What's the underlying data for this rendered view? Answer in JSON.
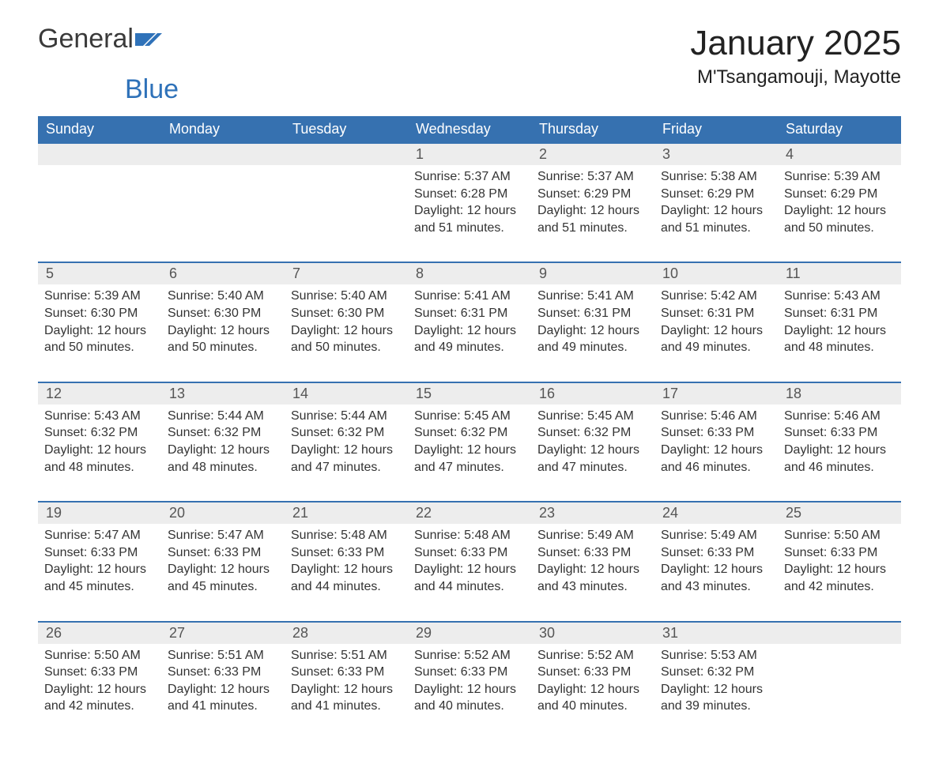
{
  "brand": {
    "word1": "General",
    "word2": "Blue"
  },
  "title": "January 2025",
  "location": "M'Tsangamouji, Mayotte",
  "colors": {
    "header_bg": "#3671b0",
    "header_text": "#ffffff",
    "daynum_bg": "#ededed",
    "row_border": "#3671b0",
    "body_text": "#333333",
    "logo_blue": "#2f72b9",
    "background": "#ffffff"
  },
  "typography": {
    "title_fontsize": 44,
    "location_fontsize": 24,
    "header_fontsize": 18,
    "daynum_fontsize": 18,
    "details_fontsize": 16
  },
  "calendar": {
    "type": "table",
    "columns": [
      "Sunday",
      "Monday",
      "Tuesday",
      "Wednesday",
      "Thursday",
      "Friday",
      "Saturday"
    ],
    "weeks": [
      [
        null,
        null,
        null,
        {
          "day": "1",
          "sunrise": "Sunrise: 5:37 AM",
          "sunset": "Sunset: 6:28 PM",
          "daylight": "Daylight: 12 hours and 51 minutes."
        },
        {
          "day": "2",
          "sunrise": "Sunrise: 5:37 AM",
          "sunset": "Sunset: 6:29 PM",
          "daylight": "Daylight: 12 hours and 51 minutes."
        },
        {
          "day": "3",
          "sunrise": "Sunrise: 5:38 AM",
          "sunset": "Sunset: 6:29 PM",
          "daylight": "Daylight: 12 hours and 51 minutes."
        },
        {
          "day": "4",
          "sunrise": "Sunrise: 5:39 AM",
          "sunset": "Sunset: 6:29 PM",
          "daylight": "Daylight: 12 hours and 50 minutes."
        }
      ],
      [
        {
          "day": "5",
          "sunrise": "Sunrise: 5:39 AM",
          "sunset": "Sunset: 6:30 PM",
          "daylight": "Daylight: 12 hours and 50 minutes."
        },
        {
          "day": "6",
          "sunrise": "Sunrise: 5:40 AM",
          "sunset": "Sunset: 6:30 PM",
          "daylight": "Daylight: 12 hours and 50 minutes."
        },
        {
          "day": "7",
          "sunrise": "Sunrise: 5:40 AM",
          "sunset": "Sunset: 6:30 PM",
          "daylight": "Daylight: 12 hours and 50 minutes."
        },
        {
          "day": "8",
          "sunrise": "Sunrise: 5:41 AM",
          "sunset": "Sunset: 6:31 PM",
          "daylight": "Daylight: 12 hours and 49 minutes."
        },
        {
          "day": "9",
          "sunrise": "Sunrise: 5:41 AM",
          "sunset": "Sunset: 6:31 PM",
          "daylight": "Daylight: 12 hours and 49 minutes."
        },
        {
          "day": "10",
          "sunrise": "Sunrise: 5:42 AM",
          "sunset": "Sunset: 6:31 PM",
          "daylight": "Daylight: 12 hours and 49 minutes."
        },
        {
          "day": "11",
          "sunrise": "Sunrise: 5:43 AM",
          "sunset": "Sunset: 6:31 PM",
          "daylight": "Daylight: 12 hours and 48 minutes."
        }
      ],
      [
        {
          "day": "12",
          "sunrise": "Sunrise: 5:43 AM",
          "sunset": "Sunset: 6:32 PM",
          "daylight": "Daylight: 12 hours and 48 minutes."
        },
        {
          "day": "13",
          "sunrise": "Sunrise: 5:44 AM",
          "sunset": "Sunset: 6:32 PM",
          "daylight": "Daylight: 12 hours and 48 minutes."
        },
        {
          "day": "14",
          "sunrise": "Sunrise: 5:44 AM",
          "sunset": "Sunset: 6:32 PM",
          "daylight": "Daylight: 12 hours and 47 minutes."
        },
        {
          "day": "15",
          "sunrise": "Sunrise: 5:45 AM",
          "sunset": "Sunset: 6:32 PM",
          "daylight": "Daylight: 12 hours and 47 minutes."
        },
        {
          "day": "16",
          "sunrise": "Sunrise: 5:45 AM",
          "sunset": "Sunset: 6:32 PM",
          "daylight": "Daylight: 12 hours and 47 minutes."
        },
        {
          "day": "17",
          "sunrise": "Sunrise: 5:46 AM",
          "sunset": "Sunset: 6:33 PM",
          "daylight": "Daylight: 12 hours and 46 minutes."
        },
        {
          "day": "18",
          "sunrise": "Sunrise: 5:46 AM",
          "sunset": "Sunset: 6:33 PM",
          "daylight": "Daylight: 12 hours and 46 minutes."
        }
      ],
      [
        {
          "day": "19",
          "sunrise": "Sunrise: 5:47 AM",
          "sunset": "Sunset: 6:33 PM",
          "daylight": "Daylight: 12 hours and 45 minutes."
        },
        {
          "day": "20",
          "sunrise": "Sunrise: 5:47 AM",
          "sunset": "Sunset: 6:33 PM",
          "daylight": "Daylight: 12 hours and 45 minutes."
        },
        {
          "day": "21",
          "sunrise": "Sunrise: 5:48 AM",
          "sunset": "Sunset: 6:33 PM",
          "daylight": "Daylight: 12 hours and 44 minutes."
        },
        {
          "day": "22",
          "sunrise": "Sunrise: 5:48 AM",
          "sunset": "Sunset: 6:33 PM",
          "daylight": "Daylight: 12 hours and 44 minutes."
        },
        {
          "day": "23",
          "sunrise": "Sunrise: 5:49 AM",
          "sunset": "Sunset: 6:33 PM",
          "daylight": "Daylight: 12 hours and 43 minutes."
        },
        {
          "day": "24",
          "sunrise": "Sunrise: 5:49 AM",
          "sunset": "Sunset: 6:33 PM",
          "daylight": "Daylight: 12 hours and 43 minutes."
        },
        {
          "day": "25",
          "sunrise": "Sunrise: 5:50 AM",
          "sunset": "Sunset: 6:33 PM",
          "daylight": "Daylight: 12 hours and 42 minutes."
        }
      ],
      [
        {
          "day": "26",
          "sunrise": "Sunrise: 5:50 AM",
          "sunset": "Sunset: 6:33 PM",
          "daylight": "Daylight: 12 hours and 42 minutes."
        },
        {
          "day": "27",
          "sunrise": "Sunrise: 5:51 AM",
          "sunset": "Sunset: 6:33 PM",
          "daylight": "Daylight: 12 hours and 41 minutes."
        },
        {
          "day": "28",
          "sunrise": "Sunrise: 5:51 AM",
          "sunset": "Sunset: 6:33 PM",
          "daylight": "Daylight: 12 hours and 41 minutes."
        },
        {
          "day": "29",
          "sunrise": "Sunrise: 5:52 AM",
          "sunset": "Sunset: 6:33 PM",
          "daylight": "Daylight: 12 hours and 40 minutes."
        },
        {
          "day": "30",
          "sunrise": "Sunrise: 5:52 AM",
          "sunset": "Sunset: 6:33 PM",
          "daylight": "Daylight: 12 hours and 40 minutes."
        },
        {
          "day": "31",
          "sunrise": "Sunrise: 5:53 AM",
          "sunset": "Sunset: 6:32 PM",
          "daylight": "Daylight: 12 hours and 39 minutes."
        },
        null
      ]
    ]
  }
}
